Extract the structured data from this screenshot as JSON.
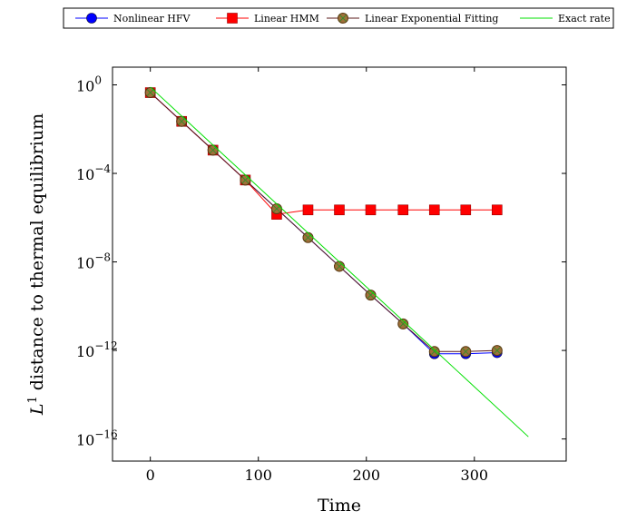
{
  "chart_data": {
    "type": "line",
    "title": "",
    "xlabel": "Time",
    "ylabel_prefix": "L",
    "ylabel_sup": "1",
    "ylabel_rest": " distance to thermal equilibrium",
    "yscale": "log",
    "xlim": [
      -35,
      385
    ],
    "ylim_exp": [
      -17,
      0.8
    ],
    "x_ticks": [
      0,
      100,
      200,
      300
    ],
    "x_tick_labels": [
      "0",
      "100",
      "200",
      "300"
    ],
    "y_ticks_exp": [
      0,
      -4,
      -8,
      -12,
      -16
    ],
    "y_tick_base": "10",
    "y_tick_sups": [
      "0",
      "−4",
      "−8",
      "−12",
      "−16"
    ],
    "legend_position": "top",
    "series": [
      {
        "name": "Nonlinear HFV",
        "color": "#0000ff",
        "marker": "circle",
        "x": [
          0,
          29,
          58,
          88,
          117,
          146,
          175,
          204,
          234,
          263,
          292,
          321
        ],
        "y_exp": [
          -0.35,
          -1.65,
          -2.95,
          -4.3,
          -5.6,
          -6.9,
          -8.2,
          -9.5,
          -10.8,
          -12.15,
          -12.15,
          -12.1
        ]
      },
      {
        "name": "Linear HMM",
        "color": "#ff0000",
        "marker": "square",
        "x": [
          0,
          29,
          58,
          88,
          117,
          146,
          175,
          204,
          234,
          263,
          292,
          321
        ],
        "y_exp": [
          -0.35,
          -1.65,
          -2.95,
          -4.3,
          -5.85,
          -5.65,
          -5.65,
          -5.65,
          -5.65,
          -5.65,
          -5.65,
          -5.65
        ]
      },
      {
        "name": "Linear Exponential Fitting",
        "color": "#8b4513",
        "marker": "circle-x",
        "x": [
          0,
          29,
          58,
          88,
          117,
          146,
          175,
          204,
          234,
          263,
          292,
          321
        ],
        "y_exp": [
          -0.35,
          -1.65,
          -2.95,
          -4.3,
          -5.6,
          -6.9,
          -8.2,
          -9.5,
          -10.8,
          -12.05,
          -12.05,
          -12.0
        ]
      },
      {
        "name": "Exact rate",
        "color": "#00e000",
        "marker": "none",
        "x": [
          0,
          350
        ],
        "y_exp": [
          -0.1,
          -15.9
        ]
      }
    ]
  }
}
